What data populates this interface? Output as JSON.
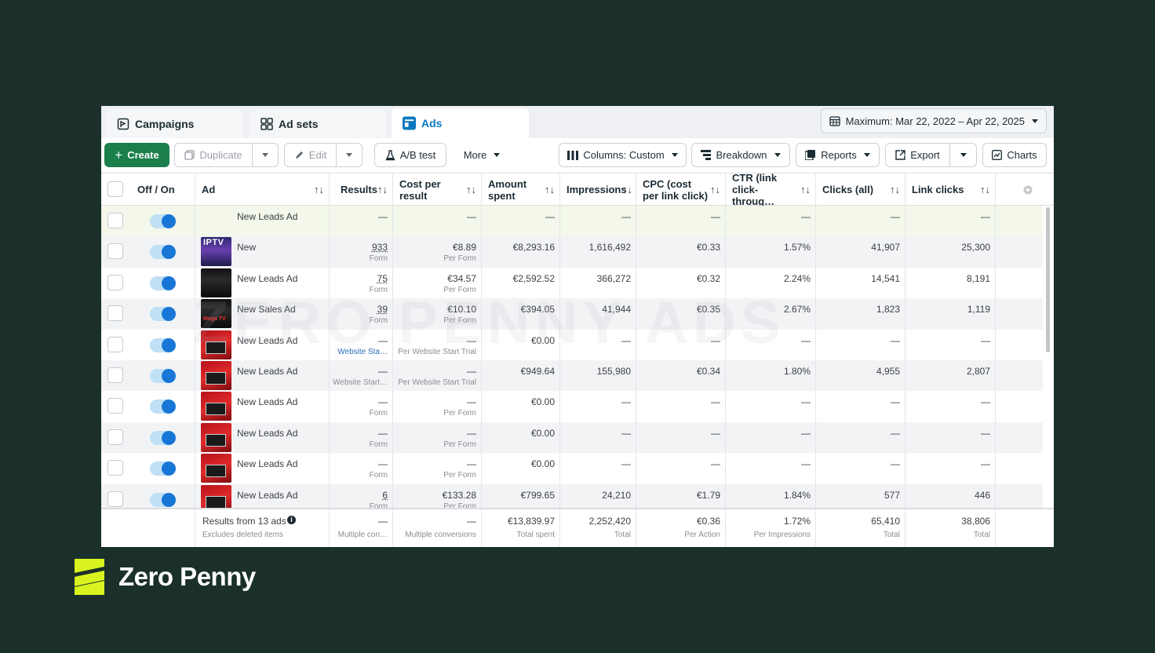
{
  "tabs": [
    {
      "label": "Campaigns",
      "icon": "flag-icon"
    },
    {
      "label": "Ad sets",
      "icon": "grid-icon"
    },
    {
      "label": "Ads",
      "icon": "ad-icon",
      "active": true
    }
  ],
  "date_range": {
    "label": "Maximum: Mar 22, 2022 – Apr 22, 2025"
  },
  "toolbar": {
    "create": "Create",
    "duplicate": "Duplicate",
    "edit": "Edit",
    "ab_test": "A/B test",
    "more": "More",
    "columns": "Columns: Custom",
    "breakdown": "Breakdown",
    "reports": "Reports",
    "export": "Export",
    "charts": "Charts"
  },
  "columns": {
    "off_on": "Off / On",
    "ad": "Ad",
    "results": "Results",
    "cost_per_result": "Cost per result",
    "amount_spent": "Amount spent",
    "impressions": "Impressions",
    "cpc": "CPC (cost per link click)",
    "ctr": "CTR (link click-throug…",
    "clicks_all": "Clicks (all)",
    "link_clicks": "Link clicks"
  },
  "rows": [
    {
      "name": "New Leads Ad",
      "thumb": "none",
      "results": "—",
      "results_sub": "",
      "cpr": "—",
      "cpr_sub": "",
      "spent": "—",
      "impressions": "—",
      "cpc": "—",
      "ctr": "—",
      "clicks": "—",
      "link_clicks": "—"
    },
    {
      "name": "New",
      "thumb": "iptv",
      "results": "933",
      "results_sub": "Form",
      "cpr": "€8.89",
      "cpr_sub": "Per Form",
      "spent": "€8,293.16",
      "impressions": "1,616,492",
      "cpc": "€0.33",
      "ctr": "1.57%",
      "clicks": "41,907",
      "link_clicks": "25,300"
    },
    {
      "name": "New Leads Ad",
      "thumb": "dark",
      "results": "75",
      "results_sub": "Form",
      "cpr": "€34.57",
      "cpr_sub": "Per Form",
      "spent": "€2,592.52",
      "impressions": "366,272",
      "cpc": "€0.32",
      "ctr": "2.24%",
      "clicks": "14,541",
      "link_clicks": "8,191"
    },
    {
      "name": "New Sales Ad",
      "thumb": "dark",
      "results": "39",
      "results_sub": "Form",
      "cpr": "€10.10",
      "cpr_sub": "Per Form",
      "spent": "€394.05",
      "impressions": "41,944",
      "cpc": "€0.35",
      "ctr": "2.67%",
      "clicks": "1,823",
      "link_clicks": "1,119"
    },
    {
      "name": "New Leads Ad",
      "thumb": "red",
      "results": "—",
      "results_sub": "Website Sta…",
      "cpr": "—",
      "cpr_sub": "Per Website Start Trial",
      "spent": "€0.00",
      "impressions": "—",
      "cpc": "—",
      "ctr": "—",
      "clicks": "—",
      "link_clicks": "—"
    },
    {
      "name": "New Leads Ad",
      "thumb": "red",
      "results": "—",
      "results_sub": "Website Start…",
      "cpr": "—",
      "cpr_sub": "Per Website Start Trial",
      "spent": "€949.64",
      "impressions": "155,980",
      "cpc": "€0.34",
      "ctr": "1.80%",
      "clicks": "4,955",
      "link_clicks": "2,807"
    },
    {
      "name": "New Leads Ad",
      "thumb": "red",
      "results": "—",
      "results_sub": "Form",
      "cpr": "—",
      "cpr_sub": "Per Form",
      "spent": "€0.00",
      "impressions": "—",
      "cpc": "—",
      "ctr": "—",
      "clicks": "—",
      "link_clicks": "—"
    },
    {
      "name": "New Leads Ad",
      "thumb": "red",
      "results": "—",
      "results_sub": "Form",
      "cpr": "—",
      "cpr_sub": "Per Form",
      "spent": "€0.00",
      "impressions": "—",
      "cpc": "—",
      "ctr": "—",
      "clicks": "—",
      "link_clicks": "—"
    },
    {
      "name": "New Leads Ad",
      "thumb": "red",
      "results": "—",
      "results_sub": "Form",
      "cpr": "—",
      "cpr_sub": "Per Form",
      "spent": "€0.00",
      "impressions": "—",
      "cpc": "—",
      "ctr": "—",
      "clicks": "—",
      "link_clicks": "—"
    },
    {
      "name": "New Leads Ad",
      "thumb": "red",
      "results": "6",
      "results_sub": "Form",
      "cpr": "€133.28",
      "cpr_sub": "Per Form",
      "spent": "€799.65",
      "impressions": "24,210",
      "cpc": "€1.79",
      "ctr": "1.84%",
      "clicks": "577",
      "link_clicks": "446"
    }
  ],
  "footer": {
    "label": "Results from 13 ads",
    "sublabel": "Excludes deleted items",
    "results": "—",
    "results_sub": "Multiple con…",
    "cpr": "—",
    "cpr_sub": "Multiple conversions",
    "spent": "€13,839.97",
    "spent_sub": "Total spent",
    "impressions": "2,252,420",
    "impressions_sub": "Total",
    "cpc": "€0.36",
    "cpc_sub": "Per Action",
    "ctr": "1.72%",
    "ctr_sub": "Per Impressions",
    "clicks": "65,410",
    "clicks_sub": "Total",
    "link_clicks": "38,806",
    "link_clicks_sub": "Total"
  },
  "watermark": "ZERO PENNY ADS",
  "brand": {
    "name": "Zero Penny",
    "thumb_text": "IPTV",
    "thumb_text_2": "Mega TV"
  },
  "colors": {
    "background": "#1b302b",
    "accent": "#1877d6",
    "create": "#1a7f4b",
    "brand_mark": "#d8f31f"
  }
}
